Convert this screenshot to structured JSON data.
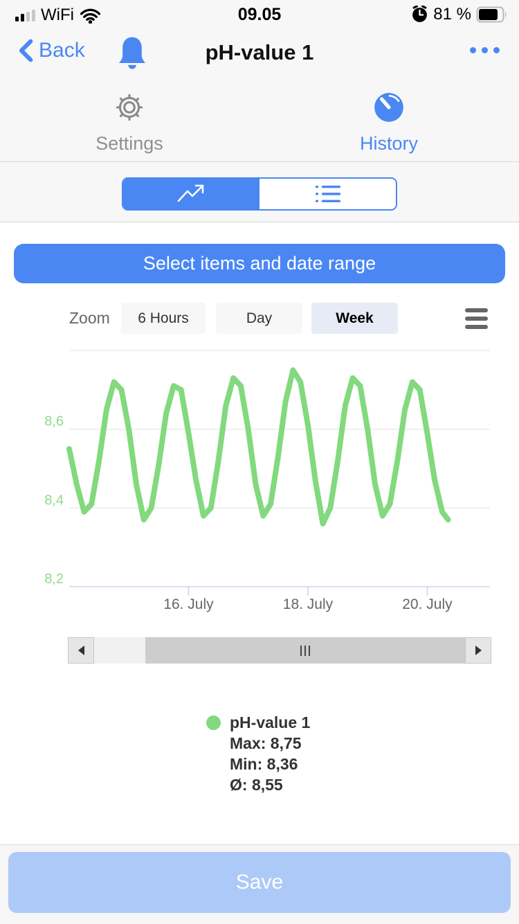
{
  "status_bar": {
    "carrier": "WiFi",
    "time": "09.05",
    "battery_text": "81 %",
    "battery_level": 0.81
  },
  "nav": {
    "back_label": "Back",
    "title": "pH-value 1"
  },
  "tabs": {
    "settings": {
      "label": "Settings",
      "active": false
    },
    "history": {
      "label": "History",
      "active": true
    }
  },
  "view_toggle": {
    "selected": "chart"
  },
  "select_button_label": "Select items and date range",
  "zoom_controls": {
    "label": "Zoom",
    "options": [
      {
        "label": "6 Hours",
        "selected": false
      },
      {
        "label": "Day",
        "selected": false
      },
      {
        "label": "Week",
        "selected": true
      }
    ]
  },
  "chart_data": {
    "type": "line",
    "title": "",
    "xlabel": "",
    "ylabel": "",
    "grid": true,
    "x_unit": "days since 14. July 00:00, 3-hour sampling",
    "xlim_days": [
      0,
      7.05
    ],
    "ylim": [
      8.2,
      8.8
    ],
    "yticks": [
      {
        "value": 8.2,
        "label": "8,2"
      },
      {
        "value": 8.4,
        "label": "8,4"
      },
      {
        "value": 8.6,
        "label": "8,6"
      },
      {
        "value": 8.8,
        "label": ""
      }
    ],
    "xticks": [
      {
        "day": 2,
        "label": "16. July"
      },
      {
        "day": 4,
        "label": "18. July"
      },
      {
        "day": 6,
        "label": "20. July"
      }
    ],
    "series": [
      {
        "name": "pH-value 1",
        "color": "#82d97e",
        "max": 8.75,
        "min": 8.36,
        "avg": 8.55,
        "points": [
          [
            0.0,
            8.55
          ],
          [
            0.125,
            8.46
          ],
          [
            0.25,
            8.39
          ],
          [
            0.375,
            8.41
          ],
          [
            0.5,
            8.52
          ],
          [
            0.625,
            8.65
          ],
          [
            0.75,
            8.72
          ],
          [
            0.875,
            8.7
          ],
          [
            1.0,
            8.6
          ],
          [
            1.125,
            8.46
          ],
          [
            1.25,
            8.37
          ],
          [
            1.375,
            8.4
          ],
          [
            1.5,
            8.51
          ],
          [
            1.625,
            8.64
          ],
          [
            1.75,
            8.71
          ],
          [
            1.875,
            8.7
          ],
          [
            2.0,
            8.59
          ],
          [
            2.125,
            8.47
          ],
          [
            2.25,
            8.38
          ],
          [
            2.375,
            8.4
          ],
          [
            2.5,
            8.52
          ],
          [
            2.625,
            8.66
          ],
          [
            2.75,
            8.73
          ],
          [
            2.875,
            8.71
          ],
          [
            3.0,
            8.6
          ],
          [
            3.125,
            8.46
          ],
          [
            3.25,
            8.38
          ],
          [
            3.375,
            8.41
          ],
          [
            3.5,
            8.53
          ],
          [
            3.625,
            8.67
          ],
          [
            3.75,
            8.75
          ],
          [
            3.875,
            8.72
          ],
          [
            4.0,
            8.61
          ],
          [
            4.125,
            8.47
          ],
          [
            4.25,
            8.36
          ],
          [
            4.375,
            8.4
          ],
          [
            4.5,
            8.52
          ],
          [
            4.625,
            8.66
          ],
          [
            4.75,
            8.73
          ],
          [
            4.875,
            8.71
          ],
          [
            5.0,
            8.6
          ],
          [
            5.125,
            8.46
          ],
          [
            5.25,
            8.38
          ],
          [
            5.375,
            8.41
          ],
          [
            5.5,
            8.52
          ],
          [
            5.625,
            8.65
          ],
          [
            5.75,
            8.72
          ],
          [
            5.875,
            8.7
          ],
          [
            6.0,
            8.59
          ],
          [
            6.125,
            8.47
          ],
          [
            6.25,
            8.39
          ],
          [
            6.35,
            8.37
          ]
        ]
      }
    ],
    "legend_position": "bottom-center"
  },
  "legend": {
    "series_name": "pH-value 1",
    "max_label": "Max: 8,75",
    "min_label": "Min: 8,36",
    "avg_label": "Ø: 8,55"
  },
  "save_button_label": "Save",
  "colors": {
    "accent_blue": "#4a87f3",
    "series_green": "#82d97e",
    "ytick_green": "#8edc8a",
    "save_disabled_blue": "#adc9f7",
    "chrome_gray": "#f7f7f7",
    "axis_line": "#ccd6eb",
    "gridline": "#e6e6e6",
    "xtick_text": "#666666"
  },
  "icons": {
    "signal": "signal-bars",
    "wifi": "wifi-arcs",
    "alarm": "alarm-clock",
    "battery": "battery-81",
    "back": "chevron-left",
    "bell": "notification-bell",
    "more": "ellipsis",
    "settings": "gear-outline",
    "history": "timer-filled",
    "chart_view": "trend-arrow",
    "list_view": "list-bullets",
    "context_menu": "hamburger",
    "scroll_left": "triangle-left",
    "scroll_right": "triangle-right"
  }
}
